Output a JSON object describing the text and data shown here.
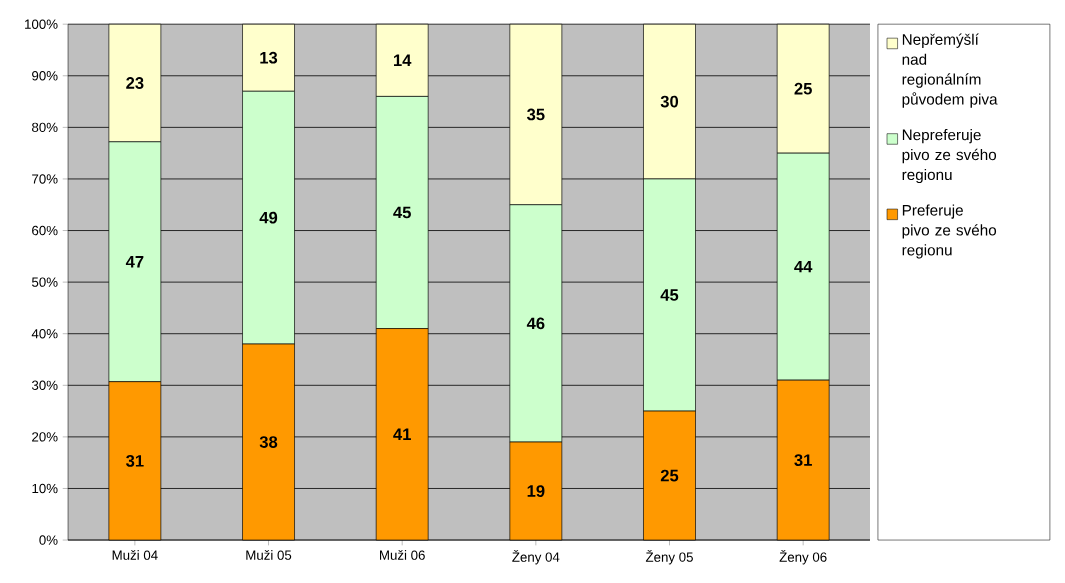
{
  "chart_data": {
    "type": "bar",
    "stacked": true,
    "categories": [
      "Muži 04",
      "Muži 05",
      "Muži 06",
      "Ženy 04",
      "Ženy 05",
      "Ženy 06"
    ],
    "series": [
      {
        "name": "Preferuje pivo ze svého regionu",
        "color": "#ff9900",
        "values": [
          30.7,
          38,
          41,
          19,
          25,
          31
        ],
        "value_labels": [
          "31",
          "38",
          "41",
          "19",
          "25",
          "31"
        ]
      },
      {
        "name": "Nepreferuje pivo ze svého regionu",
        "color": "#ccffcc",
        "values": [
          46.5,
          49,
          45,
          46,
          45,
          44
        ],
        "value_labels": [
          "47",
          "49",
          "45",
          "46",
          "45",
          "44"
        ]
      },
      {
        "name": "Nepřemýšlí nad regionálním původem piva",
        "color": "#ffffcc",
        "values": [
          22.8,
          13,
          14,
          35,
          30,
          25
        ],
        "value_labels": [
          "23",
          "13",
          "14",
          "35",
          "30",
          "25"
        ]
      }
    ],
    "ylim": [
      0,
      100
    ],
    "yticks": [
      {
        "value": 0,
        "label": "0%"
      },
      {
        "value": 10,
        "label": "10%"
      },
      {
        "value": 20,
        "label": "20%"
      },
      {
        "value": 30,
        "label": "30%"
      },
      {
        "value": 40,
        "label": "40%"
      },
      {
        "value": 50,
        "label": "50%"
      },
      {
        "value": 60,
        "label": "60%"
      },
      {
        "value": 70,
        "label": "70%"
      },
      {
        "value": 80,
        "label": "80%"
      },
      {
        "value": 90,
        "label": "90%"
      },
      {
        "value": 100,
        "label": "100%"
      }
    ],
    "grid": "y",
    "legend": "right"
  }
}
